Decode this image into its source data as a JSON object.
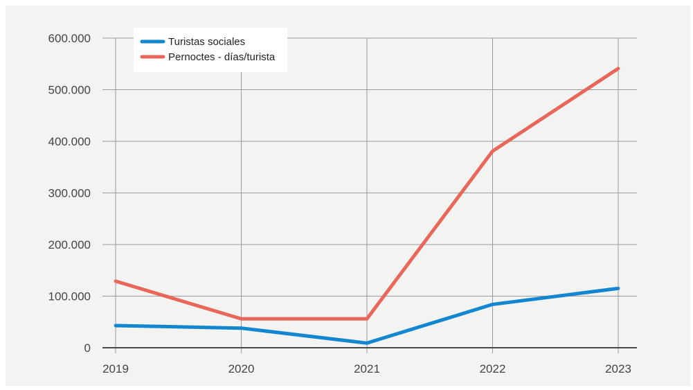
{
  "chart_data": {
    "type": "line",
    "x": [
      "2019",
      "2020",
      "2021",
      "2022",
      "2023"
    ],
    "ylim": [
      0,
      600000
    ],
    "y_ticks": [
      0,
      100000,
      200000,
      300000,
      400000,
      500000,
      600000
    ],
    "y_tick_labels": [
      "0",
      "100.000",
      "200.000",
      "300.000",
      "400.000",
      "500.000",
      "600.000"
    ],
    "grid": true,
    "legend_position": "top-left",
    "series": [
      {
        "name": "Turistas sociales",
        "color": "#1287cf",
        "values": [
          43000,
          38000,
          9000,
          84000,
          115000
        ]
      },
      {
        "name": "Pernoctes - días/turista",
        "color": "#e8675a",
        "values": [
          129000,
          56000,
          56000,
          381000,
          541000
        ]
      }
    ]
  }
}
